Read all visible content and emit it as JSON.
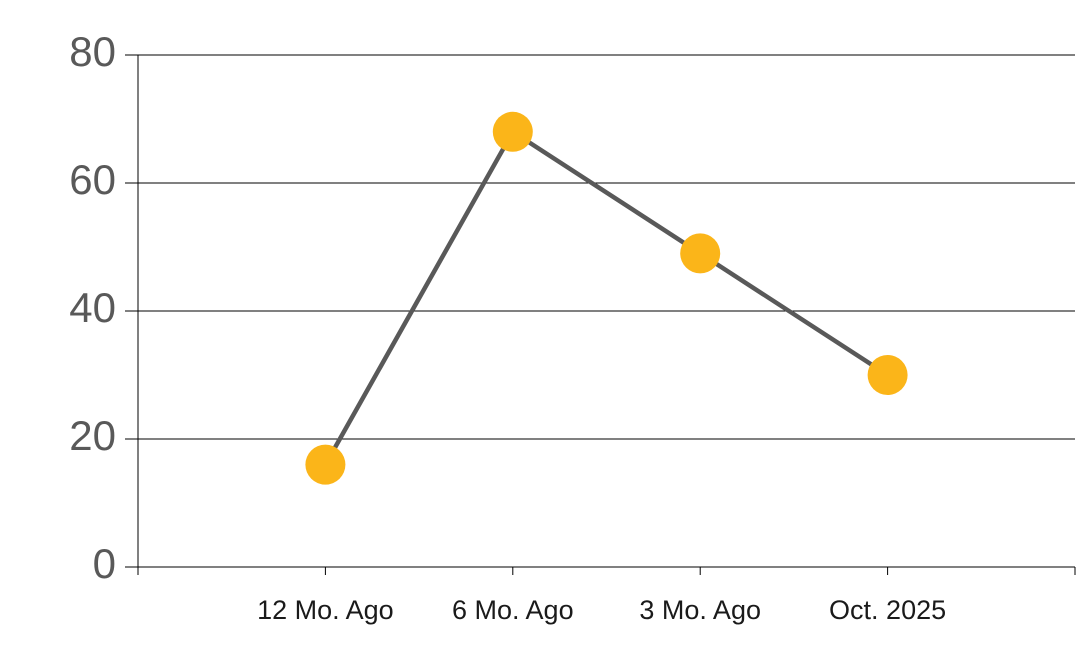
{
  "chart_data": {
    "type": "line",
    "categories": [
      "12 Mo. Ago",
      "6 Mo. Ago",
      "3 Mo. Ago",
      "Oct. 2025"
    ],
    "values": [
      16,
      68,
      49,
      30
    ],
    "color": "#FBB519",
    "line_color": "#595959",
    "ylim": [
      0,
      80
    ],
    "yticks": [
      0,
      20,
      40,
      60,
      80
    ],
    "grid": true
  }
}
